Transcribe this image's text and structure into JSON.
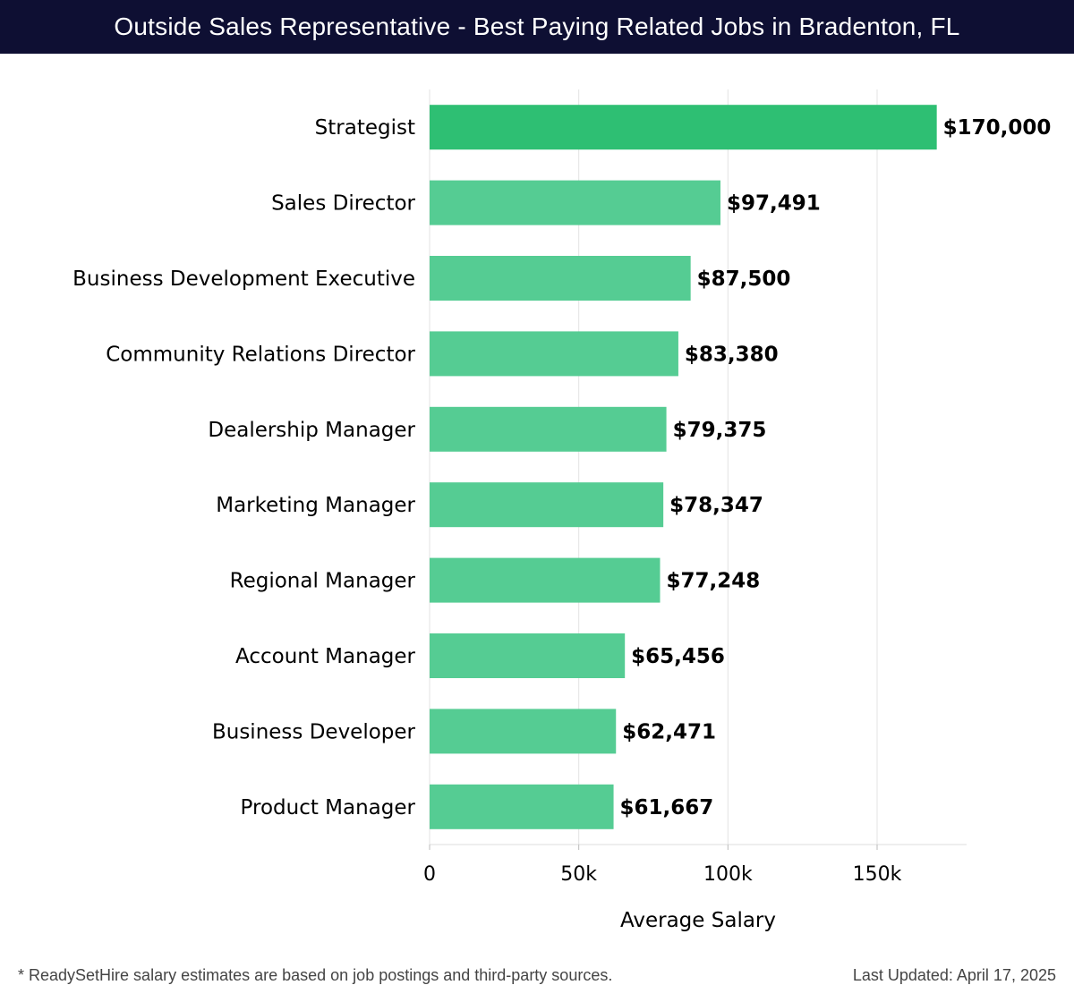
{
  "header": {
    "title": "Outside Sales Representative - Best Paying Related Jobs in Bradenton, FL"
  },
  "chart_data": {
    "type": "bar",
    "orientation": "horizontal",
    "title": "Outside Sales Representative - Best Paying Related Jobs in Bradenton, FL",
    "xlabel": "Average Salary",
    "ylabel": "",
    "xlim": [
      0,
      180000
    ],
    "xticks": [
      0,
      50000,
      100000,
      150000
    ],
    "xtick_labels": [
      "0",
      "50k",
      "100k",
      "150k"
    ],
    "grid": true,
    "categories": [
      "Strategist",
      "Sales Director",
      "Business Development Executive",
      "Community Relations Director",
      "Dealership Manager",
      "Marketing Manager",
      "Regional Manager",
      "Account Manager",
      "Business Developer",
      "Product Manager"
    ],
    "values": [
      170000,
      97491,
      87500,
      83380,
      79375,
      78347,
      77248,
      65456,
      62471,
      61667
    ],
    "value_labels": [
      "$170,000",
      "$97,491",
      "$87,500",
      "$83,380",
      "$79,375",
      "$78,347",
      "$77,248",
      "$65,456",
      "$62,471",
      "$61,667"
    ],
    "colors": {
      "top_bar": "#2ebf73",
      "bar": "#55cc93",
      "grid": "#e3e3e3",
      "text": "#000000"
    }
  },
  "footer": {
    "note": "* ReadySetHire salary estimates are based on job postings and third-party sources.",
    "updated": "Last Updated: April 17, 2025"
  }
}
